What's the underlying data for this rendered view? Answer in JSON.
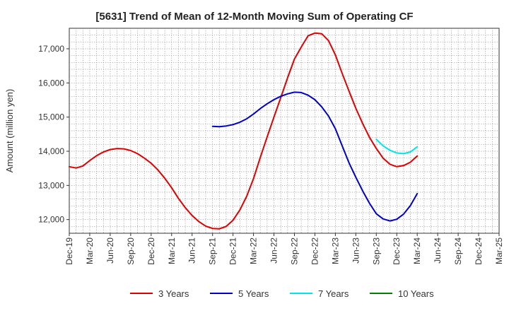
{
  "chart_data": {
    "type": "line",
    "title": "[5631]  Trend of Mean of 12-Month Moving Sum of Operating CF",
    "ylabel": "Amount (million yen)",
    "xlabel": "",
    "ylim": [
      11600,
      17600
    ],
    "yticks": [
      12000,
      13000,
      14000,
      15000,
      16000,
      17000
    ],
    "ytick_labels": [
      "12,000",
      "13,000",
      "14,000",
      "15,000",
      "16,000",
      "17,000"
    ],
    "x_start": "Dec-19",
    "x_count": 64,
    "xtick_labels": [
      "Dec-19",
      "Mar-20",
      "Jun-20",
      "Sep-20",
      "Dec-20",
      "Mar-21",
      "Jun-21",
      "Sep-21",
      "Dec-21",
      "Mar-22",
      "Jun-22",
      "Sep-22",
      "Dec-22",
      "Mar-23",
      "Jun-23",
      "Sep-23",
      "Dec-23",
      "Mar-24",
      "Jun-24",
      "Sep-24",
      "Dec-24",
      "Mar-25"
    ],
    "grid": true,
    "legend_position": "bottom",
    "series": [
      {
        "name": "3 Years",
        "color": "#e00000",
        "start_index": 0,
        "values": [
          13550,
          13510,
          13570,
          13730,
          13870,
          13980,
          14050,
          14080,
          14070,
          14020,
          13930,
          13800,
          13650,
          13450,
          13210,
          12930,
          12620,
          12350,
          12120,
          11940,
          11810,
          11740,
          11730,
          11800,
          11980,
          12280,
          12680,
          13200,
          13820,
          14420,
          15000,
          15570,
          16150,
          16700,
          17050,
          17380,
          17460,
          17440,
          17240,
          16820,
          16280,
          15760,
          15260,
          14810,
          14410,
          14080,
          13800,
          13620,
          13550,
          13580,
          13680,
          13860
        ]
      },
      {
        "name": "5 Years",
        "color": "#0000cc",
        "start_index": 21,
        "values": [
          14730,
          14720,
          14740,
          14780,
          14850,
          14950,
          15090,
          15250,
          15390,
          15510,
          15610,
          15680,
          15730,
          15720,
          15640,
          15510,
          15300,
          15030,
          14660,
          14160,
          13660,
          13240,
          12840,
          12480,
          12170,
          12020,
          11960,
          12010,
          12160,
          12410,
          12760
        ]
      },
      {
        "name": "7 Years",
        "color": "#00e6e6",
        "start_index": 45,
        "values": [
          14350,
          14160,
          14030,
          13950,
          13930,
          13980,
          14130
        ]
      },
      {
        "name": "10 Years",
        "color": "#008000",
        "start_index": 0,
        "values": []
      }
    ]
  }
}
